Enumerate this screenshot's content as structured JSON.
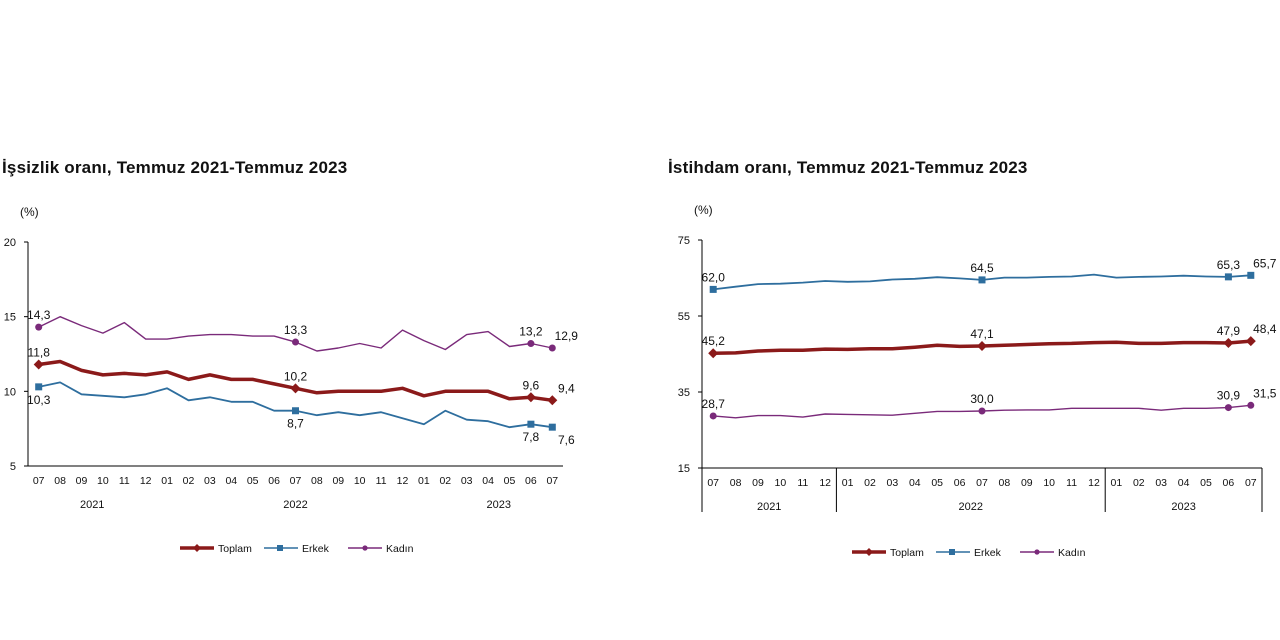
{
  "chart_data": [
    {
      "type": "line",
      "title": "İşsizlik oranı, Temmuz 2021-Temmuz 2023",
      "ylabel": "(%)",
      "ylim": [
        5,
        20
      ],
      "yticks": [
        "5",
        "10",
        "15",
        "20"
      ],
      "months": [
        "07",
        "08",
        "09",
        "10",
        "11",
        "12",
        "01",
        "02",
        "03",
        "04",
        "05",
        "06",
        "07",
        "08",
        "09",
        "10",
        "11",
        "12",
        "01",
        "02",
        "03",
        "04",
        "05",
        "06",
        "07"
      ],
      "year_labels": [
        "2021",
        "2022",
        "2023"
      ],
      "series": [
        {
          "name": "Toplam",
          "color": "#8b1a1a",
          "values": [
            11.8,
            12.0,
            11.4,
            11.1,
            11.2,
            11.1,
            11.3,
            10.8,
            11.1,
            10.8,
            10.8,
            10.5,
            10.2,
            9.9,
            10.0,
            10.0,
            10.0,
            10.2,
            9.7,
            10.0,
            10.0,
            10.0,
            9.5,
            9.6,
            9.4
          ],
          "labels": [
            {
              "i": 0,
              "text": "11,8"
            },
            {
              "i": 12,
              "text": "10,2"
            },
            {
              "i": 23,
              "text": "9,6"
            },
            {
              "i": 24,
              "text": "9,4"
            }
          ]
        },
        {
          "name": "Erkek",
          "color": "#2e6e9e",
          "values": [
            10.3,
            10.6,
            9.8,
            9.7,
            9.6,
            9.8,
            10.2,
            9.4,
            9.6,
            9.3,
            9.3,
            8.7,
            8.7,
            8.4,
            8.6,
            8.4,
            8.6,
            8.2,
            7.8,
            8.7,
            8.1,
            8.0,
            7.6,
            7.8,
            7.6
          ],
          "labels": [
            {
              "i": 0,
              "text": "10,3"
            },
            {
              "i": 12,
              "text": "8,7"
            },
            {
              "i": 23,
              "text": "7,8"
            },
            {
              "i": 24,
              "text": "7,6"
            }
          ]
        },
        {
          "name": "Kadın",
          "color": "#7a2a7a",
          "values": [
            14.3,
            15.0,
            14.4,
            13.9,
            14.6,
            13.5,
            13.5,
            13.7,
            13.8,
            13.8,
            13.7,
            13.7,
            13.3,
            12.7,
            12.9,
            13.2,
            12.9,
            14.1,
            13.4,
            12.8,
            13.8,
            14.0,
            13.0,
            13.2,
            12.9
          ],
          "labels": [
            {
              "i": 0,
              "text": "14,3"
            },
            {
              "i": 12,
              "text": "13,3"
            },
            {
              "i": 23,
              "text": "13,2"
            },
            {
              "i": 24,
              "text": "12,9"
            }
          ]
        }
      ]
    },
    {
      "type": "line",
      "title": "İstihdam oranı, Temmuz 2021-Temmuz 2023",
      "ylabel": "(%)",
      "ylim": [
        15,
        75
      ],
      "yticks": [
        "15",
        "35",
        "55",
        "75"
      ],
      "months": [
        "07",
        "08",
        "09",
        "10",
        "11",
        "12",
        "01",
        "02",
        "03",
        "04",
        "05",
        "06",
        "07",
        "08",
        "09",
        "10",
        "11",
        "12",
        "01",
        "02",
        "03",
        "04",
        "05",
        "06",
        "07"
      ],
      "year_labels": [
        "2021",
        "2022",
        "2023"
      ],
      "series": [
        {
          "name": "Toplam",
          "color": "#8b1a1a",
          "values": [
            45.2,
            45.3,
            45.8,
            46.0,
            46.0,
            46.3,
            46.2,
            46.4,
            46.4,
            46.8,
            47.3,
            47.0,
            47.1,
            47.3,
            47.5,
            47.7,
            47.8,
            48.0,
            48.1,
            47.8,
            47.8,
            48.0,
            48.0,
            47.9,
            48.4
          ],
          "labels": [
            {
              "i": 0,
              "text": "45,2"
            },
            {
              "i": 12,
              "text": "47,1"
            },
            {
              "i": 23,
              "text": "47,9"
            },
            {
              "i": 24,
              "text": "48,4"
            }
          ]
        },
        {
          "name": "Erkek",
          "color": "#2e6e9e",
          "values": [
            62.0,
            62.7,
            63.4,
            63.5,
            63.8,
            64.2,
            64.0,
            64.1,
            64.6,
            64.8,
            65.2,
            64.9,
            64.5,
            65.1,
            65.1,
            65.3,
            65.4,
            65.9,
            65.1,
            65.3,
            65.4,
            65.6,
            65.4,
            65.3,
            65.7
          ],
          "labels": [
            {
              "i": 0,
              "text": "62,0"
            },
            {
              "i": 12,
              "text": "64,5"
            },
            {
              "i": 23,
              "text": "65,3"
            },
            {
              "i": 24,
              "text": "65,7"
            }
          ]
        },
        {
          "name": "Kadın",
          "color": "#7a2a7a",
          "values": [
            28.7,
            28.2,
            28.8,
            28.8,
            28.4,
            29.2,
            29.1,
            29.0,
            28.9,
            29.4,
            29.9,
            29.9,
            30.0,
            30.2,
            30.3,
            30.3,
            30.7,
            30.7,
            30.7,
            30.7,
            30.2,
            30.7,
            30.7,
            30.9,
            31.5
          ],
          "labels": [
            {
              "i": 0,
              "text": "28,7"
            },
            {
              "i": 12,
              "text": "30,0"
            },
            {
              "i": 23,
              "text": "30,9"
            },
            {
              "i": 24,
              "text": "31,5"
            }
          ]
        }
      ]
    }
  ]
}
